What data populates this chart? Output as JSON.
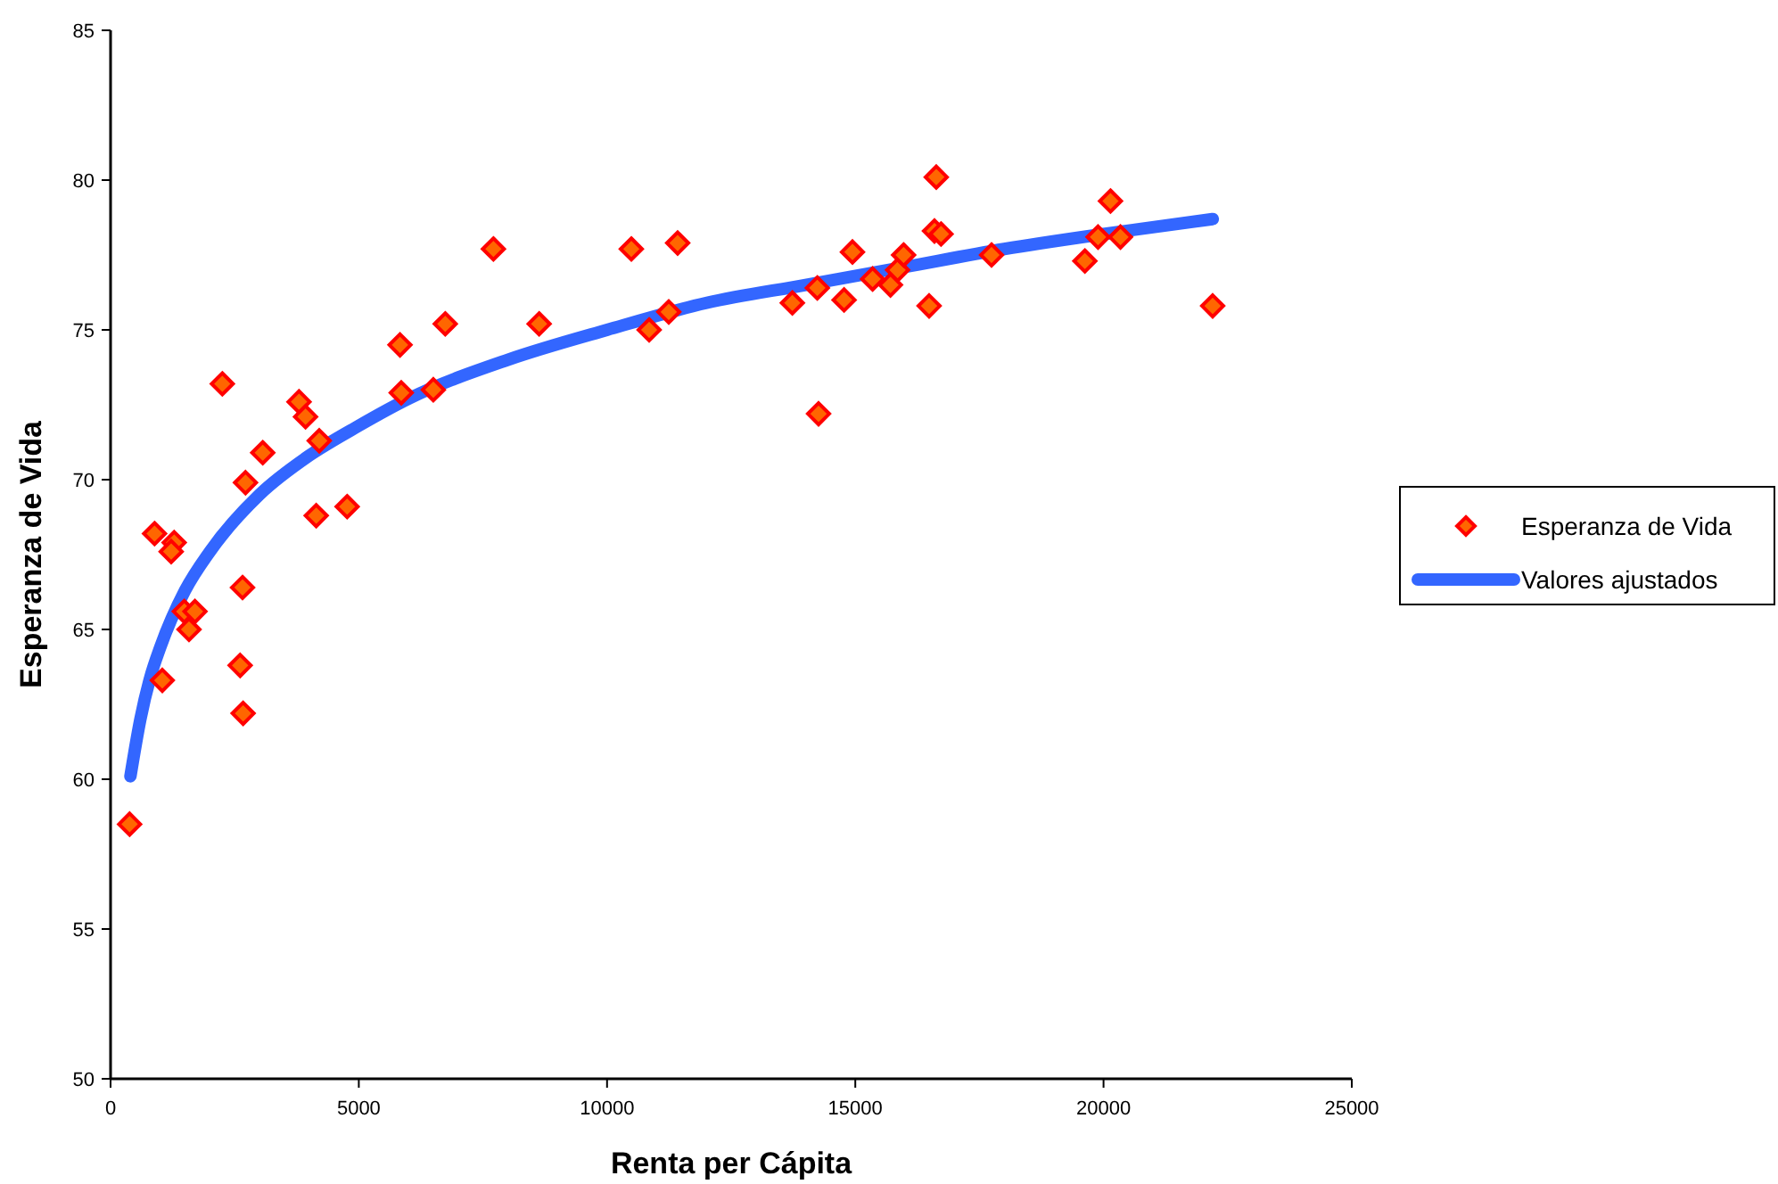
{
  "chart_data": {
    "type": "scatter",
    "xlabel": "Renta per Cápita",
    "ylabel": "Esperanza de Vida",
    "xlim": [
      0,
      25000
    ],
    "xticks": [
      0,
      5000,
      10000,
      15000,
      20000,
      25000
    ],
    "ylim": [
      50,
      85
    ],
    "yticks": [
      50,
      55,
      60,
      65,
      70,
      75,
      80,
      85
    ],
    "grid": false,
    "legend": "right",
    "series": [
      {
        "name": "Esperanza de Vida",
        "marker": "diamond",
        "color": "#ff6600",
        "x": [
          384,
          886,
          1281,
          1221,
          1042,
          1485,
          1700,
          1580,
          2251,
          2658,
          2610,
          2670,
          2718,
          3065,
          3796,
          3927,
          4203,
          4142,
          4765,
          5830,
          5855,
          6501,
          6741,
          8632,
          7711,
          10489,
          11422,
          11243,
          10848,
          13732,
          14235,
          14774,
          14260,
          14943,
          15349,
          15708,
          15852,
          15973,
          16631,
          16595,
          16727,
          16487,
          17744,
          19624,
          19889,
          20140,
          20341,
          22198
        ],
        "values": [
          58.5,
          68.2,
          67.9,
          67.6,
          63.3,
          65.6,
          65.6,
          65.0,
          73.2,
          66.4,
          63.8,
          62.2,
          69.9,
          70.9,
          72.6,
          72.1,
          71.3,
          68.8,
          69.1,
          74.5,
          72.9,
          73.0,
          75.2,
          75.2,
          77.7,
          77.7,
          77.9,
          75.6,
          75.0,
          75.9,
          76.4,
          76.0,
          72.2,
          77.6,
          76.7,
          76.5,
          77.0,
          77.5,
          80.1,
          78.3,
          78.2,
          75.8,
          77.5,
          77.3,
          78.1,
          79.3,
          78.1,
          75.8
        ]
      },
      {
        "name": "Valores ajustados",
        "type": "line",
        "marker": "none",
        "line_style": "solid",
        "color": "#3366ff",
        "x": [
          400,
          600,
          800,
          1000,
          1500,
          2000,
          3000,
          4000,
          5000,
          6000,
          8000,
          10000,
          12000,
          14000,
          16000,
          18000,
          20000,
          22200
        ],
        "values": [
          60.1,
          62.0,
          63.4,
          64.4,
          66.3,
          67.6,
          69.5,
          70.8,
          71.8,
          72.7,
          74.0,
          75.0,
          75.9,
          76.5,
          77.1,
          77.7,
          78.2,
          78.7
        ]
      }
    ]
  }
}
